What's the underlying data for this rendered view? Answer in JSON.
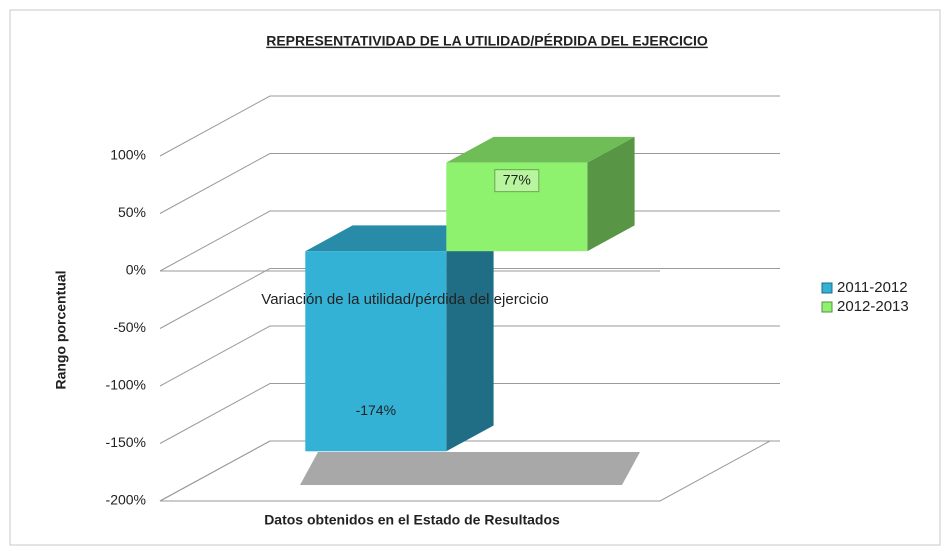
{
  "chart_data": {
    "type": "bar3d",
    "title": "REPRESENTATIVIDAD DE LA UTILIDAD/PÉRDIDA DEL EJERCICIO",
    "x_label": "Datos obtenidos en el Estado de Resultados",
    "y_label": "Rango porcentual",
    "categories": [
      "Variación de la utilidad/pérdida del ejercicio"
    ],
    "series": [
      {
        "name": "2011-2012",
        "color": "#33b2d6",
        "values": [
          -174
        ],
        "value_labels": [
          "-174%"
        ]
      },
      {
        "name": "2012-2013",
        "color": "#8ef26f",
        "values": [
          77
        ],
        "value_labels": [
          "77%"
        ]
      }
    ],
    "ylim": [
      -200,
      100
    ],
    "yticks": [
      {
        "value": -200,
        "label": "-200%"
      },
      {
        "value": -150,
        "label": "-150%"
      },
      {
        "value": -100,
        "label": "-100%"
      },
      {
        "value": -50,
        "label": "-50%"
      },
      {
        "value": 0,
        "label": "0%"
      },
      {
        "value": 50,
        "label": "50%"
      },
      {
        "value": 100,
        "label": "100%"
      }
    ],
    "grid": true,
    "legend": "right"
  }
}
